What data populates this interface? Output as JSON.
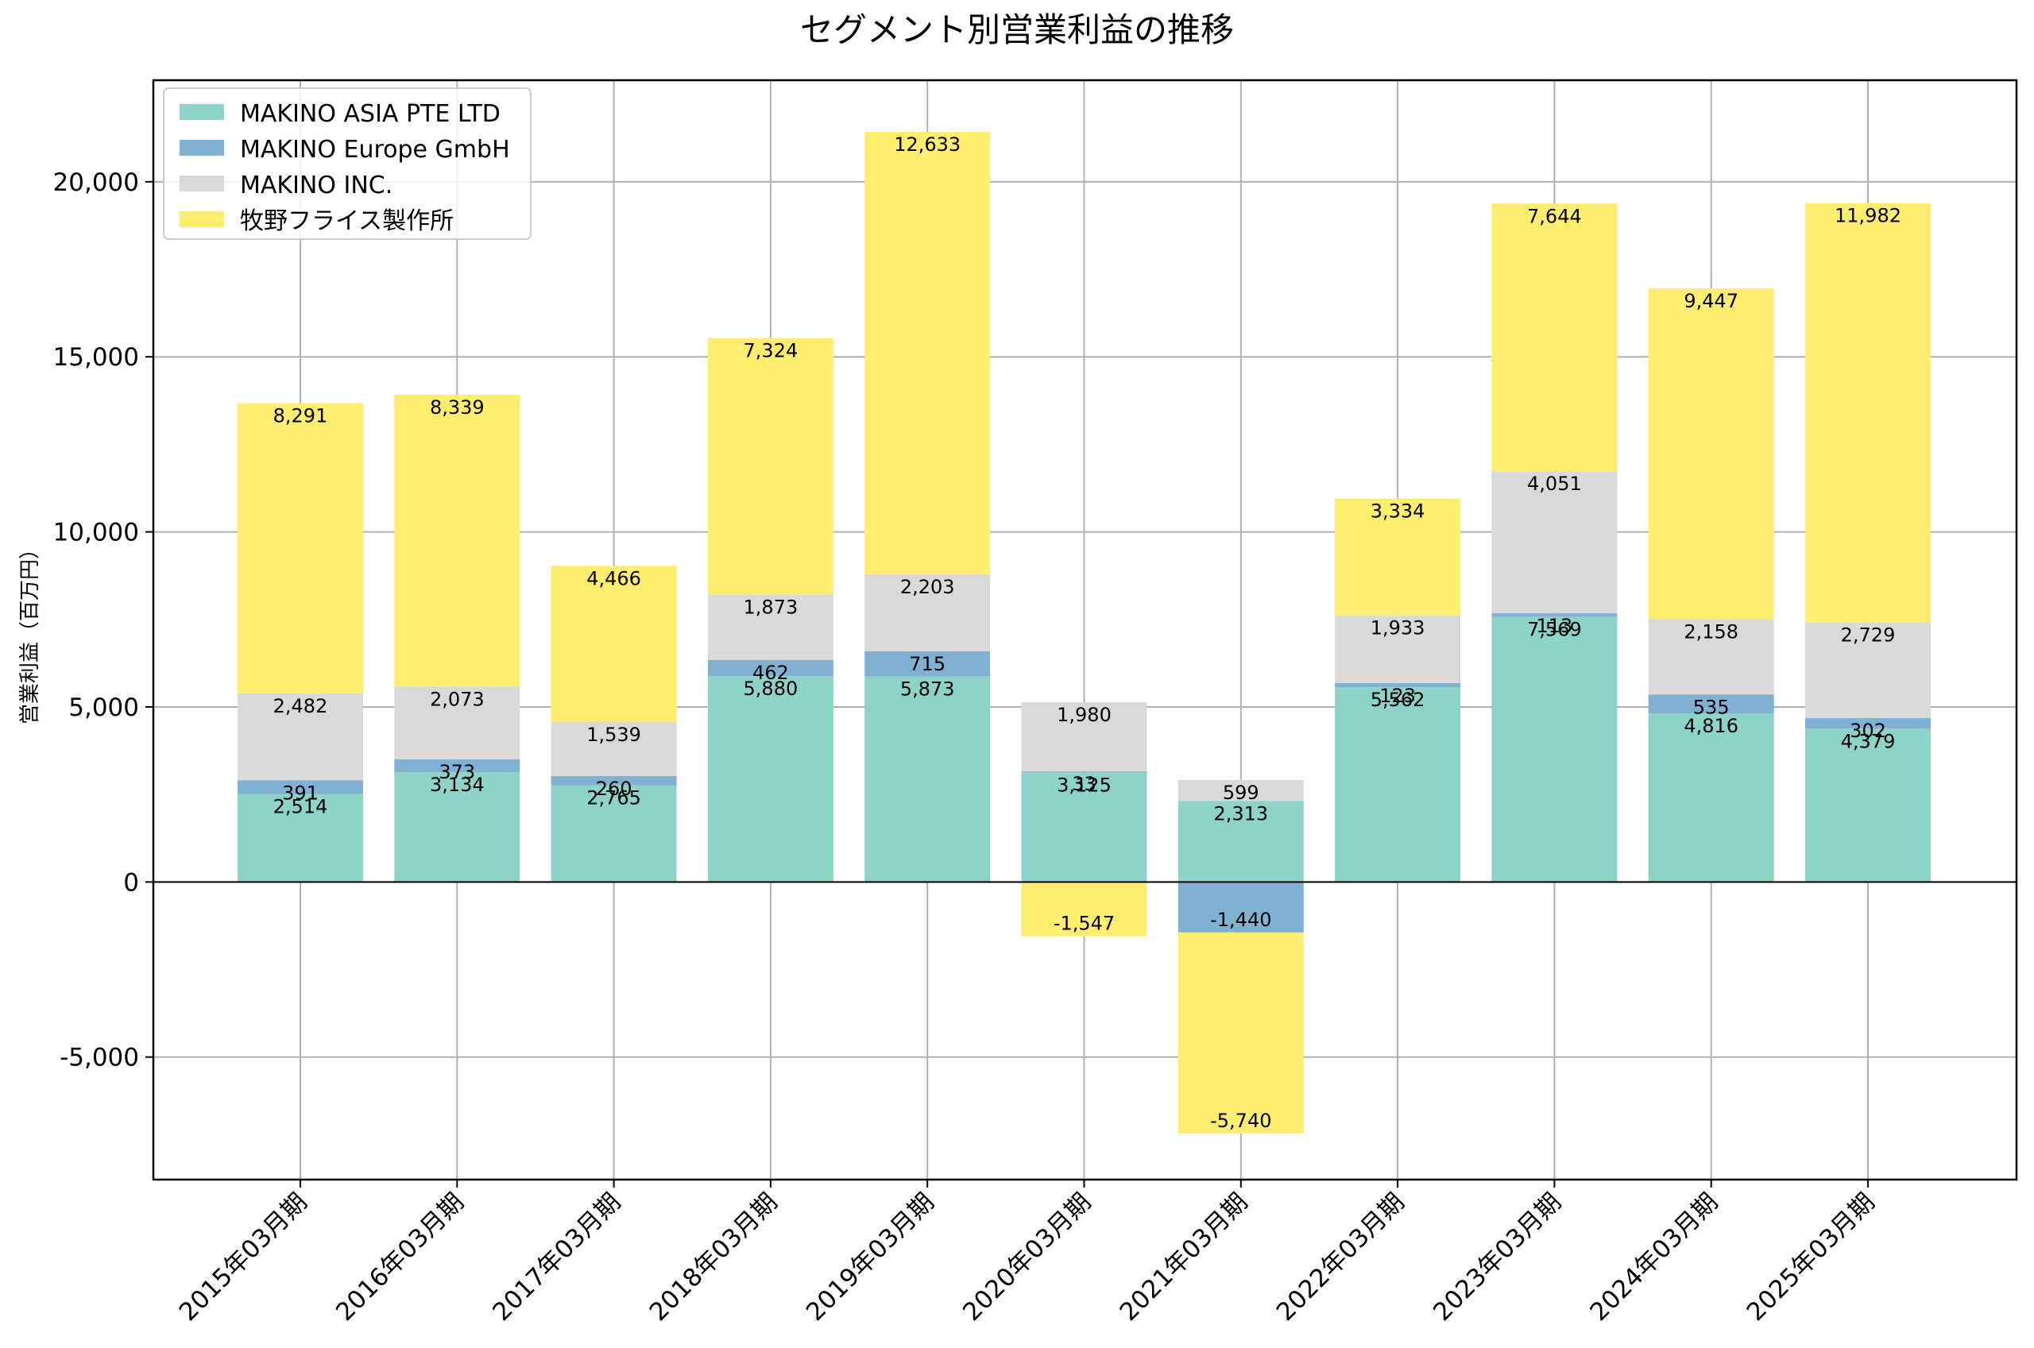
{
  "chart_data": {
    "type": "bar",
    "stacked": true,
    "title": "セグメント別営業利益の推移",
    "xlabel": "",
    "ylabel": "営業利益（百万円）",
    "ylim": [
      -8500,
      22900
    ],
    "yticks": [
      -5000,
      0,
      5000,
      10000,
      15000,
      20000
    ],
    "ytick_labels": [
      "-5,000",
      "0",
      "5,000",
      "10,000",
      "15,000",
      "20,000"
    ],
    "grid": true,
    "legend_position": "top-left",
    "categories": [
      "2015年03月期",
      "2016年03月期",
      "2017年03月期",
      "2018年03月期",
      "2019年03月期",
      "2020年03月期",
      "2021年03月期",
      "2022年03月期",
      "2023年03月期",
      "2024年03月期",
      "2025年03月期"
    ],
    "series": [
      {
        "name": "MAKINO ASIA PTE LTD",
        "color": "#8dd3c7",
        "values": [
          2514,
          3134,
          2765,
          5880,
          5873,
          3125,
          2313,
          5562,
          7569,
          4816,
          4379
        ],
        "labels": [
          "2,514",
          "3,134",
          "2,765",
          "5,880",
          "5,873",
          "3,125",
          "2,313",
          "5,562",
          "7,569",
          "4,816",
          "4,379"
        ]
      },
      {
        "name": "MAKINO Europe GmbH",
        "color": "#80b1d3",
        "values": [
          391,
          373,
          260,
          462,
          715,
          33,
          -1440,
          123,
          113,
          535,
          302
        ],
        "labels": [
          "391",
          "373",
          "260",
          "462",
          "715",
          "33",
          "-1,440",
          "123",
          "113",
          "535",
          "302"
        ]
      },
      {
        "name": "MAKINO INC.",
        "color": "#d9d9d9",
        "values": [
          2482,
          2073,
          1539,
          1873,
          2203,
          1980,
          599,
          1933,
          4051,
          2158,
          2729
        ],
        "labels": [
          "2,482",
          "2,073",
          "1,539",
          "1,873",
          "2,203",
          "1,980",
          "599",
          "1,933",
          "4,051",
          "2,158",
          "2,729"
        ]
      },
      {
        "name": "牧野フライス製作所",
        "color": "#ffed6f",
        "values": [
          8291,
          8339,
          4466,
          7324,
          12633,
          -1547,
          -5740,
          3334,
          7644,
          9447,
          11982
        ],
        "labels": [
          "8,291",
          "8,339",
          "4,466",
          "7,324",
          "12,633",
          "-1,547",
          "-5,740",
          "3,334",
          "7,644",
          "9,447",
          "11,982"
        ]
      }
    ]
  }
}
